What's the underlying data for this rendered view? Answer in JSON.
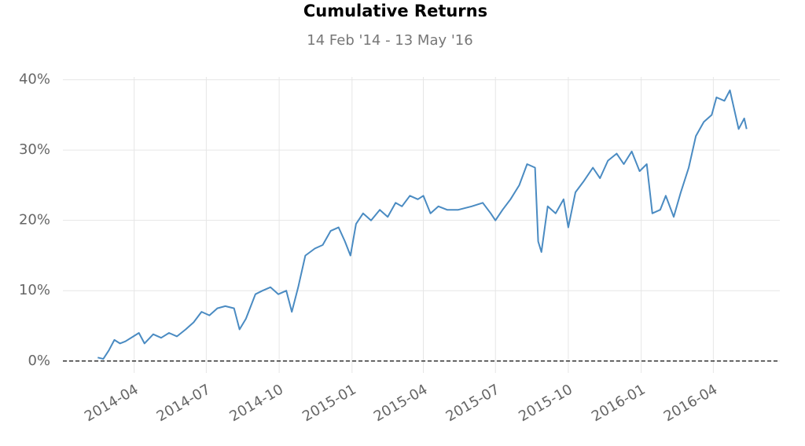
{
  "chart_data": {
    "type": "line",
    "title": "Cumulative Returns",
    "subtitle": "14 Feb '14 - 13 May '16",
    "x": [
      "2014-02-14",
      "2014-02-21",
      "2014-02-28",
      "2014-03-07",
      "2014-03-14",
      "2014-03-21",
      "2014-03-31",
      "2014-04-07",
      "2014-04-14",
      "2014-04-25",
      "2014-05-05",
      "2014-05-15",
      "2014-05-25",
      "2014-06-05",
      "2014-06-15",
      "2014-06-25",
      "2014-07-05",
      "2014-07-15",
      "2014-07-25",
      "2014-08-05",
      "2014-08-12",
      "2014-08-20",
      "2014-09-01",
      "2014-09-10",
      "2014-09-20",
      "2014-09-30",
      "2014-10-10",
      "2014-10-17",
      "2014-10-25",
      "2014-11-03",
      "2014-11-15",
      "2014-11-25",
      "2014-12-05",
      "2014-12-15",
      "2014-12-23",
      "2014-12-30",
      "2015-01-06",
      "2015-01-15",
      "2015-01-25",
      "2015-02-05",
      "2015-02-15",
      "2015-02-25",
      "2015-03-05",
      "2015-03-15",
      "2015-03-25",
      "2015-04-01",
      "2015-04-10",
      "2015-04-20",
      "2015-05-01",
      "2015-05-15",
      "2015-06-01",
      "2015-06-15",
      "2015-06-25",
      "2015-07-01",
      "2015-07-10",
      "2015-07-20",
      "2015-07-31",
      "2015-08-10",
      "2015-08-20",
      "2015-08-24",
      "2015-08-28",
      "2015-09-05",
      "2015-09-15",
      "2015-09-25",
      "2015-10-01",
      "2015-10-10",
      "2015-10-20",
      "2015-11-01",
      "2015-11-10",
      "2015-11-20",
      "2015-12-01",
      "2015-12-10",
      "2015-12-20",
      "2015-12-30",
      "2016-01-08",
      "2016-01-15",
      "2016-01-25",
      "2016-02-01",
      "2016-02-11",
      "2016-02-20",
      "2016-03-01",
      "2016-03-10",
      "2016-03-20",
      "2016-03-30",
      "2016-04-05",
      "2016-04-15",
      "2016-04-22",
      "2016-05-03",
      "2016-05-10",
      "2016-05-13"
    ],
    "series": [
      {
        "name": "Cumulative Returns",
        "color": "#4a8bc2",
        "values": [
          0.5,
          0.3,
          1.5,
          3,
          2.5,
          2.8,
          3.5,
          4,
          2.5,
          3.8,
          3.3,
          4,
          3.5,
          4.5,
          5.5,
          7,
          6.5,
          7.5,
          7.8,
          7.5,
          4.5,
          6,
          9.5,
          10,
          10.5,
          9.5,
          10,
          7,
          10.5,
          15,
          16,
          16.5,
          18.5,
          19,
          17,
          15,
          19.5,
          21,
          20,
          21.5,
          20.5,
          22.5,
          22,
          23.5,
          23,
          23.5,
          21,
          22,
          21.5,
          21.5,
          22,
          22.5,
          21,
          20,
          21.5,
          23,
          25,
          28,
          27.5,
          17,
          15.5,
          22,
          21,
          23,
          19,
          24,
          25.5,
          27.5,
          26,
          28.5,
          29.5,
          28,
          29.8,
          27,
          28,
          21,
          21.5,
          23.5,
          20.5,
          24,
          27.5,
          32,
          34,
          35,
          37.5,
          37,
          38.5,
          33,
          34.5,
          33
        ]
      }
    ],
    "xlim": [
      "2014-01-01",
      "2016-06-24"
    ],
    "xticks": [
      {
        "value": "2014-04-01",
        "label": "2014-04"
      },
      {
        "value": "2014-07-01",
        "label": "2014-07"
      },
      {
        "value": "2014-10-01",
        "label": "2014-10"
      },
      {
        "value": "2015-01-01",
        "label": "2015-01"
      },
      {
        "value": "2015-04-01",
        "label": "2015-04"
      },
      {
        "value": "2015-07-01",
        "label": "2015-07"
      },
      {
        "value": "2015-10-01",
        "label": "2015-10"
      },
      {
        "value": "2016-01-01",
        "label": "2016-01"
      },
      {
        "value": "2016-04-01",
        "label": "2016-04"
      }
    ],
    "ylim": [
      -1.7,
      40.4
    ],
    "yticks": [
      {
        "value": 0,
        "label": "0%"
      },
      {
        "value": 10,
        "label": "10%"
      },
      {
        "value": 20,
        "label": "20%"
      },
      {
        "value": 30,
        "label": "30%"
      },
      {
        "value": 40,
        "label": "40%"
      }
    ],
    "baseline": 0,
    "grid": true
  }
}
